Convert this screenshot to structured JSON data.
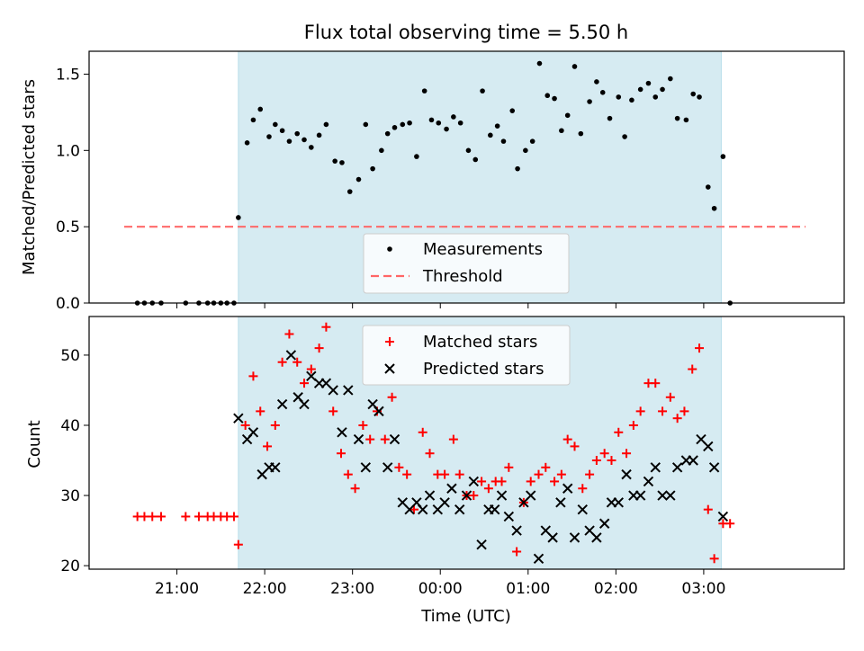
{
  "chart_data": {
    "title": "Flux total observing time = 5.50 h",
    "x_axis": {
      "label": "Time (UTC)",
      "tick_labels": [
        "21:00",
        "22:00",
        "23:00",
        "00:00",
        "01:00",
        "02:00",
        "03:00"
      ],
      "tick_hours": [
        21,
        22,
        23,
        24,
        25,
        26,
        27
      ],
      "range_hours": [
        20.0,
        28.6
      ]
    },
    "observing_window_hours": [
      21.7,
      27.2
    ],
    "shade_color": "#add8e6",
    "panels": [
      {
        "type": "scatter",
        "ylabel": "Matched/Predicted stars",
        "ylim": [
          0,
          1.65
        ],
        "yticks": [
          "0.0",
          "0.5",
          "1.0",
          "1.5"
        ],
        "threshold": 0.5,
        "threshold_color": "#ff6666",
        "legend": [
          "Measurements",
          "Threshold"
        ],
        "legend_position": "bottom-center",
        "series": {
          "name": "Measurements",
          "color": "#000000",
          "points": [
            [
              20.55,
              0
            ],
            [
              20.63,
              0
            ],
            [
              20.72,
              0
            ],
            [
              20.82,
              0
            ],
            [
              21.1,
              0
            ],
            [
              21.25,
              0
            ],
            [
              21.35,
              0
            ],
            [
              21.42,
              0
            ],
            [
              21.5,
              0
            ],
            [
              21.57,
              0
            ],
            [
              21.65,
              0
            ],
            [
              21.7,
              0.56
            ],
            [
              21.8,
              1.05
            ],
            [
              21.87,
              1.2
            ],
            [
              21.95,
              1.27
            ],
            [
              22.05,
              1.09
            ],
            [
              22.12,
              1.17
            ],
            [
              22.2,
              1.13
            ],
            [
              22.28,
              1.06
            ],
            [
              22.37,
              1.11
            ],
            [
              22.45,
              1.07
            ],
            [
              22.53,
              1.02
            ],
            [
              22.62,
              1.1
            ],
            [
              22.7,
              1.17
            ],
            [
              22.8,
              0.93
            ],
            [
              22.88,
              0.92
            ],
            [
              22.97,
              0.73
            ],
            [
              23.07,
              0.81
            ],
            [
              23.15,
              1.17
            ],
            [
              23.23,
              0.88
            ],
            [
              23.33,
              1.0
            ],
            [
              23.4,
              1.11
            ],
            [
              23.48,
              1.15
            ],
            [
              23.57,
              1.17
            ],
            [
              23.65,
              1.18
            ],
            [
              23.73,
              0.96
            ],
            [
              23.82,
              1.39
            ],
            [
              23.9,
              1.2
            ],
            [
              23.98,
              1.18
            ],
            [
              24.07,
              1.14
            ],
            [
              24.15,
              1.22
            ],
            [
              24.23,
              1.18
            ],
            [
              24.32,
              1.0
            ],
            [
              24.4,
              0.94
            ],
            [
              24.48,
              1.39
            ],
            [
              24.57,
              1.1
            ],
            [
              24.65,
              1.16
            ],
            [
              24.72,
              1.06
            ],
            [
              24.82,
              1.26
            ],
            [
              24.88,
              0.88
            ],
            [
              24.97,
              1.0
            ],
            [
              25.05,
              1.06
            ],
            [
              25.13,
              1.57
            ],
            [
              25.22,
              1.36
            ],
            [
              25.3,
              1.34
            ],
            [
              25.38,
              1.13
            ],
            [
              25.45,
              1.23
            ],
            [
              25.53,
              1.55
            ],
            [
              25.6,
              1.11
            ],
            [
              25.7,
              1.32
            ],
            [
              25.78,
              1.45
            ],
            [
              25.85,
              1.38
            ],
            [
              25.93,
              1.21
            ],
            [
              26.03,
              1.35
            ],
            [
              26.1,
              1.09
            ],
            [
              26.18,
              1.33
            ],
            [
              26.28,
              1.4
            ],
            [
              26.37,
              1.44
            ],
            [
              26.45,
              1.35
            ],
            [
              26.53,
              1.4
            ],
            [
              26.62,
              1.47
            ],
            [
              26.7,
              1.21
            ],
            [
              26.8,
              1.2
            ],
            [
              26.88,
              1.37
            ],
            [
              26.95,
              1.35
            ],
            [
              27.05,
              0.76
            ],
            [
              27.12,
              0.62
            ],
            [
              27.22,
              0.96
            ],
            [
              27.3,
              0
            ]
          ]
        }
      },
      {
        "type": "scatter",
        "ylabel": "Count",
        "ylim": [
          19.5,
          55.5
        ],
        "yticks": [
          "20",
          "30",
          "40",
          "50"
        ],
        "legend": [
          "Matched stars",
          "Predicted stars"
        ],
        "legend_position": "top-center",
        "series": [
          {
            "name": "Matched stars",
            "color": "#ff0000",
            "marker": "plus",
            "points": [
              [
                20.55,
                27
              ],
              [
                20.63,
                27
              ],
              [
                20.72,
                27
              ],
              [
                20.82,
                27
              ],
              [
                21.1,
                27
              ],
              [
                21.25,
                27
              ],
              [
                21.35,
                27
              ],
              [
                21.42,
                27
              ],
              [
                21.5,
                27
              ],
              [
                21.57,
                27
              ],
              [
                21.65,
                27
              ],
              [
                21.7,
                23
              ],
              [
                21.78,
                40
              ],
              [
                21.87,
                47
              ],
              [
                21.95,
                42
              ],
              [
                22.03,
                37
              ],
              [
                22.12,
                40
              ],
              [
                22.2,
                49
              ],
              [
                22.28,
                53
              ],
              [
                22.37,
                49
              ],
              [
                22.45,
                46
              ],
              [
                22.53,
                48
              ],
              [
                22.62,
                51
              ],
              [
                22.7,
                54
              ],
              [
                22.78,
                42
              ],
              [
                22.87,
                36
              ],
              [
                22.95,
                33
              ],
              [
                23.03,
                31
              ],
              [
                23.12,
                40
              ],
              [
                23.2,
                38
              ],
              [
                23.28,
                42
              ],
              [
                23.37,
                38
              ],
              [
                23.45,
                44
              ],
              [
                23.53,
                34
              ],
              [
                23.62,
                33
              ],
              [
                23.7,
                28
              ],
              [
                23.8,
                39
              ],
              [
                23.88,
                36
              ],
              [
                23.97,
                33
              ],
              [
                24.05,
                33
              ],
              [
                24.15,
                38
              ],
              [
                24.22,
                33
              ],
              [
                24.3,
                30
              ],
              [
                24.38,
                30
              ],
              [
                24.47,
                32
              ],
              [
                24.55,
                31
              ],
              [
                24.63,
                32
              ],
              [
                24.7,
                32
              ],
              [
                24.78,
                34
              ],
              [
                24.87,
                22
              ],
              [
                24.95,
                29
              ],
              [
                25.03,
                32
              ],
              [
                25.12,
                33
              ],
              [
                25.2,
                34
              ],
              [
                25.3,
                32
              ],
              [
                25.38,
                33
              ],
              [
                25.45,
                38
              ],
              [
                25.53,
                37
              ],
              [
                25.62,
                31
              ],
              [
                25.7,
                33
              ],
              [
                25.78,
                35
              ],
              [
                25.87,
                36
              ],
              [
                25.95,
                35
              ],
              [
                26.03,
                39
              ],
              [
                26.12,
                36
              ],
              [
                26.2,
                40
              ],
              [
                26.28,
                42
              ],
              [
                26.37,
                46
              ],
              [
                26.45,
                46
              ],
              [
                26.53,
                42
              ],
              [
                26.62,
                44
              ],
              [
                26.7,
                41
              ],
              [
                26.78,
                42
              ],
              [
                26.87,
                48
              ],
              [
                26.95,
                51
              ],
              [
                27.05,
                28
              ],
              [
                27.12,
                21
              ],
              [
                27.22,
                26
              ],
              [
                27.3,
                26
              ]
            ]
          },
          {
            "name": "Predicted stars",
            "color": "#000000",
            "marker": "x",
            "points": [
              [
                21.7,
                41
              ],
              [
                21.8,
                38
              ],
              [
                21.87,
                39
              ],
              [
                21.97,
                33
              ],
              [
                22.05,
                34
              ],
              [
                22.12,
                34
              ],
              [
                22.2,
                43
              ],
              [
                22.3,
                50
              ],
              [
                22.38,
                44
              ],
              [
                22.45,
                43
              ],
              [
                22.53,
                47
              ],
              [
                22.62,
                46
              ],
              [
                22.7,
                46
              ],
              [
                22.78,
                45
              ],
              [
                22.88,
                39
              ],
              [
                22.95,
                45
              ],
              [
                23.07,
                38
              ],
              [
                23.15,
                34
              ],
              [
                23.23,
                43
              ],
              [
                23.3,
                42
              ],
              [
                23.4,
                34
              ],
              [
                23.48,
                38
              ],
              [
                23.57,
                29
              ],
              [
                23.65,
                28
              ],
              [
                23.73,
                29
              ],
              [
                23.8,
                28
              ],
              [
                23.88,
                30
              ],
              [
                23.97,
                28
              ],
              [
                24.05,
                29
              ],
              [
                24.13,
                31
              ],
              [
                24.22,
                28
              ],
              [
                24.3,
                30
              ],
              [
                24.38,
                32
              ],
              [
                24.47,
                23
              ],
              [
                24.55,
                28
              ],
              [
                24.62,
                28
              ],
              [
                24.7,
                30
              ],
              [
                24.78,
                27
              ],
              [
                24.87,
                25
              ],
              [
                24.95,
                29
              ],
              [
                25.03,
                30
              ],
              [
                25.12,
                21
              ],
              [
                25.2,
                25
              ],
              [
                25.28,
                24
              ],
              [
                25.37,
                29
              ],
              [
                25.45,
                31
              ],
              [
                25.53,
                24
              ],
              [
                25.62,
                28
              ],
              [
                25.7,
                25
              ],
              [
                25.78,
                24
              ],
              [
                25.87,
                26
              ],
              [
                25.95,
                29
              ],
              [
                26.03,
                29
              ],
              [
                26.12,
                33
              ],
              [
                26.2,
                30
              ],
              [
                26.28,
                30
              ],
              [
                26.37,
                32
              ],
              [
                26.45,
                34
              ],
              [
                26.53,
                30
              ],
              [
                26.62,
                30
              ],
              [
                26.7,
                34
              ],
              [
                26.8,
                35
              ],
              [
                26.88,
                35
              ],
              [
                26.97,
                38
              ],
              [
                27.05,
                37
              ],
              [
                27.12,
                34
              ],
              [
                27.22,
                27
              ]
            ]
          }
        ]
      }
    ]
  }
}
